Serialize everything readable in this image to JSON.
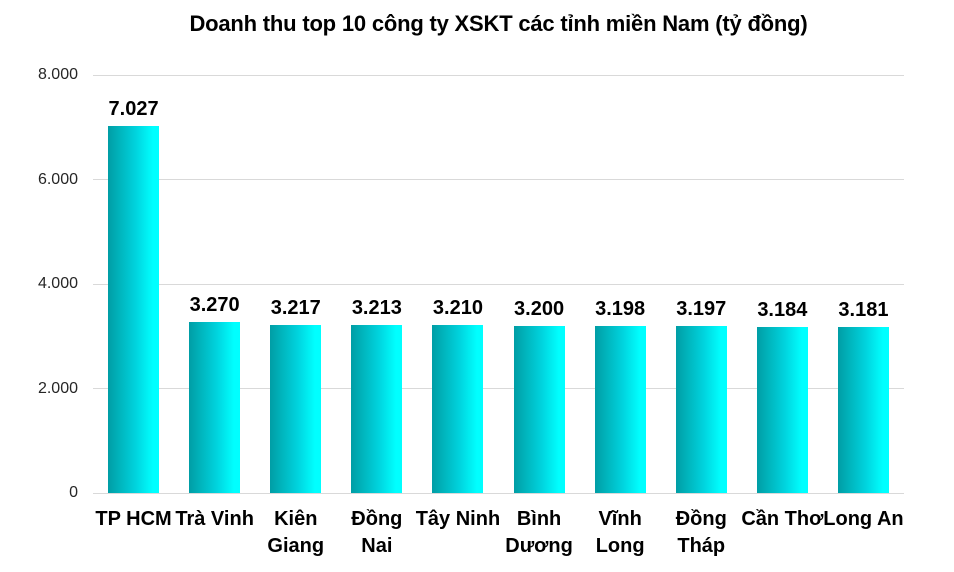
{
  "page": {
    "background_color": "#ffffff"
  },
  "chart_data": {
    "type": "bar",
    "title": "Doanh thu top 10 công ty XSKT các tỉnh miền Nam (tỷ đồng)",
    "categories": [
      "TP HCM",
      "Trà Vinh",
      "Kiên Giang",
      "Đồng Nai",
      "Tây Ninh",
      "Bình Dương",
      "Vĩnh Long",
      "Đồng Tháp",
      "Cần Thơ",
      "Long An"
    ],
    "values": [
      7027,
      3270,
      3217,
      3213,
      3210,
      3200,
      3198,
      3197,
      3184,
      3181
    ],
    "value_labels": [
      "7.027",
      "3.270",
      "3.217",
      "3.213",
      "3.210",
      "3.200",
      "3.198",
      "3.197",
      "3.184",
      "3.181"
    ],
    "x_tick_labels_display": [
      "TP HCM",
      "Trà Vinh",
      "Kiên\nGiang",
      "Đồng\nNai",
      "Tây Ninh",
      "Bình\nDương",
      "Vĩnh\nLong",
      "Đồng\nTháp",
      "Cần Thơ",
      "Long An"
    ],
    "xlabel": "",
    "ylabel": "",
    "ylim": [
      0,
      8000
    ],
    "yticks": [
      0,
      2000,
      4000,
      6000,
      8000
    ],
    "ytick_labels": [
      "0",
      "2.000",
      "4.000",
      "6.000",
      "8.000"
    ],
    "grid": true,
    "legend_position": "none",
    "gridline_color": "#d9d9d9",
    "bar_gradient_left_color": "#009da5",
    "bar_gradient_mid_color": "#00d4de",
    "bar_gradient_right_color": "#00ffff"
  }
}
